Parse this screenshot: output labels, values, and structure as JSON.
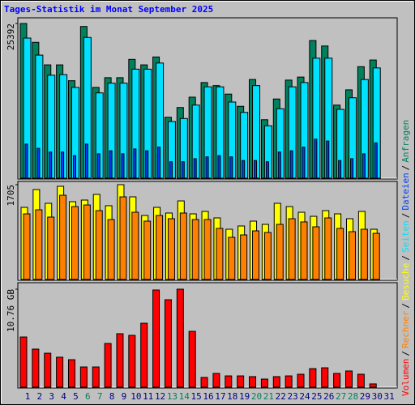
{
  "legend_separator": "/",
  "chart_data": [
    {
      "type": "bar",
      "title": "Tages-Statistik im Monat September 2025",
      "ylim": [
        0,
        25392
      ],
      "yticks": [
        25392
      ],
      "series": [
        {
          "name": "Anfragen",
          "color": "#00805c",
          "values": [
            25392,
            22300,
            18600,
            18600,
            16000,
            24900,
            14900,
            16500,
            16500,
            19500,
            18600,
            19900,
            10000,
            11600,
            13300,
            15700,
            15200,
            13800,
            11800,
            16200,
            9600,
            13000,
            16100,
            16600,
            22600,
            21700,
            12000,
            14500,
            18300,
            19400,
            null
          ]
        },
        {
          "name": "Dateien",
          "color": "#0040ff",
          "values": [
            5600,
            4900,
            4300,
            4300,
            3700,
            5600,
            4000,
            4500,
            4000,
            4800,
            4500,
            5100,
            2700,
            2700,
            3200,
            3500,
            3700,
            3500,
            2900,
            2900,
            2700,
            4300,
            4500,
            5100,
            6400,
            6100,
            2900,
            3200,
            4000,
            5800,
            null
          ]
        },
        {
          "name": "Seiten",
          "color": "#00e0ff",
          "values": [
            23000,
            20200,
            16900,
            17000,
            14900,
            23100,
            14000,
            15600,
            15600,
            17900,
            17900,
            18900,
            9300,
            9800,
            12000,
            15000,
            15000,
            12500,
            10800,
            15200,
            8600,
            11400,
            15000,
            15700,
            19700,
            19700,
            11300,
            13200,
            16200,
            18100,
            null
          ]
        }
      ]
    },
    {
      "type": "bar",
      "ylim": [
        0,
        1705
      ],
      "yticks": [
        1705
      ],
      "series": [
        {
          "name": "Besuche",
          "color": "#ffff00",
          "values": [
            1297,
            1617,
            1370,
            1676,
            1399,
            1428,
            1530,
            1326,
            1705,
            1486,
            1151,
            1297,
            1195,
            1413,
            1180,
            1224,
            1107,
            903,
            962,
            1049,
            991,
            1370,
            1311,
            1209,
            1136,
            1238,
            1180,
            1093,
            1224,
            903,
            null
          ]
        },
        {
          "name": "Rechner",
          "color": "#ff8000",
          "values": [
            1180,
            1253,
            1122,
            1515,
            1311,
            1340,
            1238,
            1078,
            1486,
            1209,
            1049,
            1151,
            1093,
            1195,
            1078,
            1078,
            918,
            758,
            801,
            874,
            845,
            991,
            1093,
            1035,
            947,
            1107,
            918,
            860,
            903,
            830,
            null
          ]
        }
      ]
    },
    {
      "type": "bar",
      "ylim": [
        0,
        10.76
      ],
      "yticks": [
        {
          "value": 10.76,
          "label": "10.76 GB"
        }
      ],
      "categories": [
        1,
        2,
        3,
        4,
        5,
        6,
        7,
        8,
        9,
        10,
        11,
        12,
        13,
        14,
        15,
        16,
        17,
        18,
        19,
        20,
        21,
        22,
        23,
        24,
        25,
        26,
        27,
        28,
        29,
        30,
        31
      ],
      "category_colors": [
        "#000080",
        "#000080",
        "#000080",
        "#000080",
        "#000080",
        "#00805c",
        "#00805c",
        "#000080",
        "#000080",
        "#000080",
        "#000080",
        "#000080",
        "#00805c",
        "#00805c",
        "#000080",
        "#000080",
        "#000080",
        "#000080",
        "#000080",
        "#00805c",
        "#00805c",
        "#000080",
        "#000080",
        "#000080",
        "#000080",
        "#000080",
        "#00805c",
        "#00805c",
        "#000080",
        "#000080",
        "#000080"
      ],
      "series": [
        {
          "name": "Volumen",
          "color": "#ff0000",
          "values": [
            5.51,
            4.18,
            3.73,
            3.29,
            3.02,
            2.22,
            2.22,
            4.8,
            5.87,
            5.69,
            7.02,
            10.67,
            9.6,
            10.76,
            6.13,
            1.07,
            1.51,
            1.24,
            1.24,
            1.16,
            0.89,
            1.16,
            1.24,
            1.42,
            2.04,
            2.13,
            1.51,
            1.78,
            1.42,
            0.36,
            null
          ]
        }
      ]
    }
  ]
}
